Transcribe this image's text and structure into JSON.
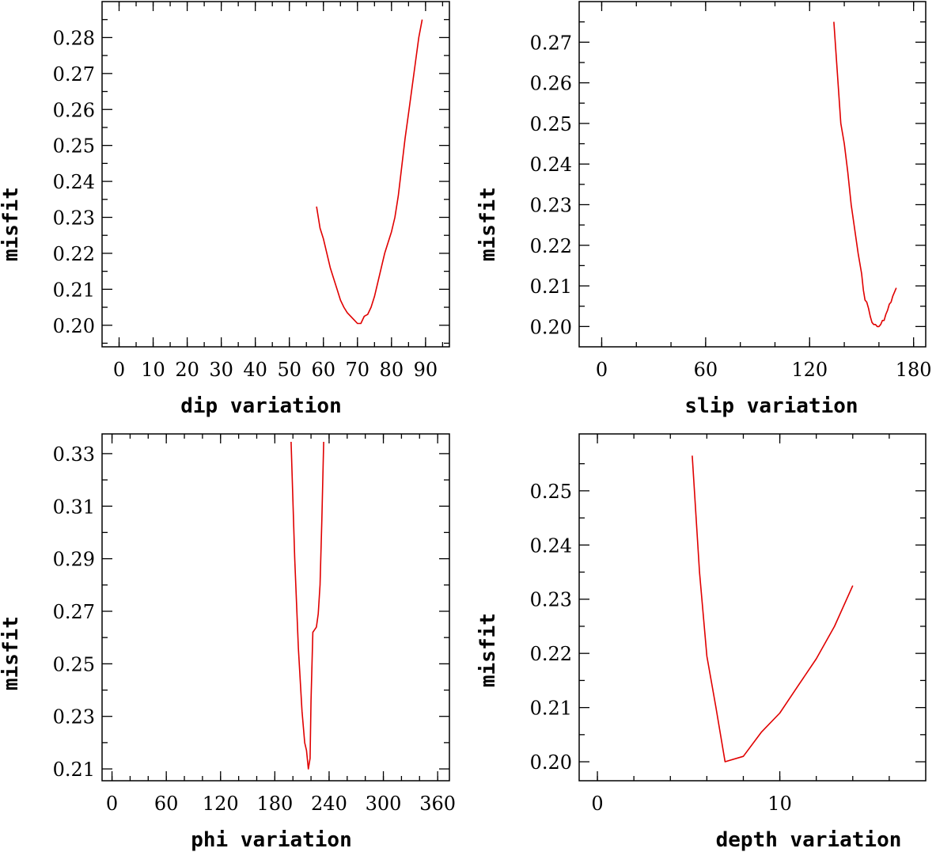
{
  "chart_data": [
    {
      "type": "line",
      "xlabel": "dip    variation",
      "ylabel": "misfit",
      "xlim": [
        -5,
        97
      ],
      "ylim": [
        0.194,
        0.29
      ],
      "xticks": [
        0,
        10,
        20,
        30,
        40,
        50,
        60,
        70,
        80,
        90
      ],
      "xticklabels": [
        "0",
        "10",
        "20",
        "30",
        "40",
        "50",
        "60",
        "70",
        "80",
        "90"
      ],
      "yticks": [
        0.2,
        0.21,
        0.22,
        0.23,
        0.24,
        0.25,
        0.26,
        0.27,
        0.28
      ],
      "yticklabels": [
        "0.20",
        "0.21",
        "0.22",
        "0.23",
        "0.24",
        "0.25",
        "0.26",
        "0.27",
        "0.28"
      ],
      "color": "#e00000",
      "x": [
        58,
        59,
        60,
        61,
        62,
        63,
        64,
        65,
        66,
        67,
        68,
        69,
        70,
        71,
        72,
        73,
        74,
        75,
        76,
        77,
        78,
        79,
        80,
        81,
        82,
        83,
        84,
        85,
        86,
        87,
        88,
        89
      ],
      "y": [
        0.233,
        0.227,
        0.224,
        0.22,
        0.216,
        0.213,
        0.21,
        0.207,
        0.205,
        0.2035,
        0.2025,
        0.2015,
        0.2005,
        0.2005,
        0.2025,
        0.203,
        0.205,
        0.208,
        0.212,
        0.216,
        0.22,
        0.223,
        0.226,
        0.23,
        0.236,
        0.244,
        0.252,
        0.259,
        0.266,
        0.273,
        0.28,
        0.285
      ]
    },
    {
      "type": "line",
      "xlabel": "slip   variation",
      "ylabel": "misfit",
      "xlim": [
        -13,
        187
      ],
      "ylim": [
        0.195,
        0.28
      ],
      "xticks": [
        0,
        60,
        120,
        180
      ],
      "xticklabels": [
        "0",
        "60",
        "120",
        "180"
      ],
      "yticks": [
        0.2,
        0.21,
        0.22,
        0.23,
        0.24,
        0.25,
        0.26,
        0.27
      ],
      "yticklabels": [
        "0.20",
        "0.21",
        "0.22",
        "0.23",
        "0.24",
        "0.25",
        "0.26",
        "0.27"
      ],
      "color": "#e00000",
      "x": [
        134,
        138,
        140,
        142,
        144,
        146,
        148,
        150,
        151,
        152,
        153,
        154,
        155,
        156,
        157,
        158,
        159,
        160,
        161,
        162,
        163,
        164,
        165,
        166,
        167,
        168,
        169,
        170
      ],
      "y": [
        0.275,
        0.25,
        0.245,
        0.238,
        0.23,
        0.224,
        0.218,
        0.213,
        0.209,
        0.2065,
        0.206,
        0.2045,
        0.2025,
        0.201,
        0.2005,
        0.2005,
        0.2,
        0.2,
        0.2005,
        0.2015,
        0.2015,
        0.203,
        0.204,
        0.2055,
        0.206,
        0.2075,
        0.2085,
        0.2095
      ]
    },
    {
      "type": "line",
      "xlabel": "phi    variation",
      "ylabel": "misfit",
      "xlim": [
        -11,
        373
      ],
      "ylim": [
        0.2055,
        0.3375
      ],
      "xticks": [
        0,
        60,
        120,
        180,
        240,
        300,
        360
      ],
      "xticklabels": [
        "0",
        "60",
        "120",
        "180",
        "240",
        "300",
        "360"
      ],
      "yticks": [
        0.21,
        0.23,
        0.25,
        0.27,
        0.29,
        0.31,
        0.33
      ],
      "yticklabels": [
        "0.21",
        "0.23",
        "0.25",
        "0.27",
        "0.29",
        "0.31",
        "0.33"
      ],
      "color": "#e00000",
      "x": [
        198,
        202,
        206,
        210,
        213,
        215,
        217,
        219,
        220,
        222,
        224,
        226,
        228,
        230,
        232,
        234
      ],
      "y": [
        0.3345,
        0.29,
        0.256,
        0.232,
        0.22,
        0.217,
        0.21,
        0.214,
        0.236,
        0.262,
        0.263,
        0.264,
        0.269,
        0.28,
        0.305,
        0.3345
      ]
    },
    {
      "type": "line",
      "xlabel": "depth  variation",
      "ylabel": "misfit",
      "xlim": [
        -1,
        18
      ],
      "ylim": [
        0.1965,
        0.2605
      ],
      "xticks": [
        0,
        10
      ],
      "xticklabels": [
        "0",
        "10"
      ],
      "yticks": [
        0.2,
        0.21,
        0.22,
        0.23,
        0.24,
        0.25
      ],
      "yticklabels": [
        "0.20",
        "0.21",
        "0.22",
        "0.23",
        "0.24",
        "0.25"
      ],
      "color": "#e00000",
      "x": [
        5.2,
        5.6,
        6,
        6.5,
        7,
        8,
        9,
        10,
        11,
        12,
        13,
        14
      ],
      "y": [
        0.2565,
        0.235,
        0.2195,
        0.21,
        0.2,
        0.201,
        0.2055,
        0.209,
        0.214,
        0.219,
        0.225,
        0.2325
      ]
    }
  ]
}
